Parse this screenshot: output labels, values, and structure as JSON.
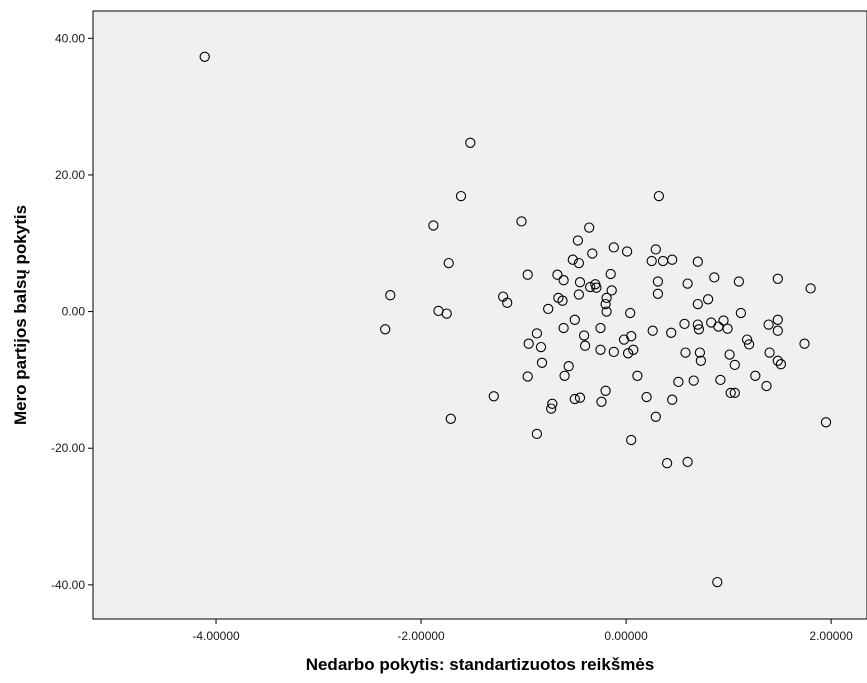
{
  "chart_data": {
    "type": "scatter",
    "xlabel": "Nedarbo pokytis: standartizuotos reikšmės",
    "ylabel": "Mero partijos balsų pokytis",
    "xlim": [
      -5.2,
      2.35
    ],
    "ylim": [
      -45,
      44
    ],
    "x_ticks": [
      -4,
      -2,
      0,
      2
    ],
    "x_tick_labels": [
      "-4.00000",
      "-2.00000",
      "0.00000",
      "2.00000"
    ],
    "y_ticks": [
      40,
      20,
      0,
      -20,
      -40
    ],
    "y_tick_labels": [
      "40.00",
      "20.00",
      "0.00",
      "-20.00",
      "-40.00"
    ],
    "grid": false,
    "plot_background": "#f0f0f0",
    "marker_color": "#000000",
    "points": [
      [
        -4.11,
        37.3
      ],
      [
        -1.52,
        24.7
      ],
      [
        -1.61,
        16.9
      ],
      [
        0.32,
        16.9
      ],
      [
        -1.88,
        12.6
      ],
      [
        -1.02,
        13.2
      ],
      [
        -2.3,
        2.4
      ],
      [
        -2.35,
        -2.6
      ],
      [
        -1.73,
        7.1
      ],
      [
        -1.83,
        0.1
      ],
      [
        -1.75,
        -0.3
      ],
      [
        -1.71,
        -15.7
      ],
      [
        -1.2,
        2.2
      ],
      [
        -1.16,
        1.3
      ],
      [
        -1.29,
        -12.4
      ],
      [
        -0.96,
        5.4
      ],
      [
        -0.95,
        -4.7
      ],
      [
        -0.96,
        -9.5
      ],
      [
        -0.87,
        -3.2
      ],
      [
        -0.83,
        -5.2
      ],
      [
        -0.82,
        -7.5
      ],
      [
        -0.87,
        -17.9
      ],
      [
        -0.76,
        0.4
      ],
      [
        -0.73,
        -14.2
      ],
      [
        -0.72,
        -13.5
      ],
      [
        -0.67,
        5.4
      ],
      [
        -0.66,
        2.0
      ],
      [
        -0.62,
        1.6
      ],
      [
        -0.61,
        4.6
      ],
      [
        -0.61,
        -2.4
      ],
      [
        -0.6,
        -9.4
      ],
      [
        -0.56,
        -8.0
      ],
      [
        -0.52,
        7.6
      ],
      [
        -0.5,
        -1.2
      ],
      [
        -0.5,
        -12.8
      ],
      [
        -0.47,
        10.4
      ],
      [
        -0.46,
        7.1
      ],
      [
        -0.45,
        4.3
      ],
      [
        -0.46,
        2.5
      ],
      [
        -0.45,
        -12.6
      ],
      [
        -0.41,
        -3.5
      ],
      [
        -0.4,
        -5.0
      ],
      [
        -0.36,
        12.3
      ],
      [
        -0.35,
        3.6
      ],
      [
        -0.33,
        8.5
      ],
      [
        -0.3,
        4.0
      ],
      [
        -0.29,
        3.5
      ],
      [
        -0.25,
        -2.4
      ],
      [
        -0.25,
        -5.6
      ],
      [
        -0.24,
        -13.2
      ],
      [
        -0.2,
        1.1
      ],
      [
        -0.19,
        2.0
      ],
      [
        -0.19,
        0.0
      ],
      [
        -0.2,
        -11.6
      ],
      [
        -0.15,
        5.5
      ],
      [
        -0.14,
        3.1
      ],
      [
        -0.12,
        9.4
      ],
      [
        -0.12,
        -5.9
      ],
      [
        -0.02,
        -4.1
      ],
      [
        0.01,
        8.8
      ],
      [
        0.02,
        -6.1
      ],
      [
        0.04,
        -0.2
      ],
      [
        0.05,
        -3.6
      ],
      [
        0.07,
        -5.6
      ],
      [
        0.05,
        -18.8
      ],
      [
        0.11,
        -9.4
      ],
      [
        0.2,
        -12.5
      ],
      [
        0.25,
        7.4
      ],
      [
        0.26,
        -2.8
      ],
      [
        0.29,
        9.1
      ],
      [
        0.29,
        -15.4
      ],
      [
        0.31,
        4.4
      ],
      [
        0.31,
        2.6
      ],
      [
        0.36,
        7.4
      ],
      [
        0.4,
        -22.2
      ],
      [
        0.45,
        7.6
      ],
      [
        0.44,
        -3.1
      ],
      [
        0.45,
        -12.9
      ],
      [
        0.51,
        -10.3
      ],
      [
        0.57,
        -1.8
      ],
      [
        0.58,
        -6.0
      ],
      [
        0.6,
        4.1
      ],
      [
        0.6,
        -22.0
      ],
      [
        0.66,
        -10.1
      ],
      [
        0.7,
        7.3
      ],
      [
        0.7,
        1.1
      ],
      [
        0.7,
        -1.9
      ],
      [
        0.71,
        -2.6
      ],
      [
        0.72,
        -6.0
      ],
      [
        0.73,
        -7.2
      ],
      [
        0.8,
        1.8
      ],
      [
        0.83,
        -1.6
      ],
      [
        0.86,
        5.0
      ],
      [
        0.89,
        -39.6
      ],
      [
        0.92,
        -10.0
      ],
      [
        0.9,
        -2.2
      ],
      [
        0.95,
        -1.3
      ],
      [
        0.99,
        -2.5
      ],
      [
        1.01,
        -6.3
      ],
      [
        1.02,
        -11.9
      ],
      [
        1.06,
        -11.9
      ],
      [
        1.06,
        -7.8
      ],
      [
        1.1,
        4.4
      ],
      [
        1.12,
        -0.2
      ],
      [
        1.18,
        -4.1
      ],
      [
        1.2,
        -4.8
      ],
      [
        1.26,
        -9.4
      ],
      [
        1.37,
        -10.9
      ],
      [
        1.39,
        -1.9
      ],
      [
        1.4,
        -6.0
      ],
      [
        1.48,
        -1.2
      ],
      [
        1.48,
        -2.8
      ],
      [
        1.48,
        4.8
      ],
      [
        1.48,
        -7.2
      ],
      [
        1.51,
        -7.7
      ],
      [
        1.74,
        -4.7
      ],
      [
        1.8,
        3.4
      ],
      [
        1.95,
        -16.2
      ]
    ]
  }
}
